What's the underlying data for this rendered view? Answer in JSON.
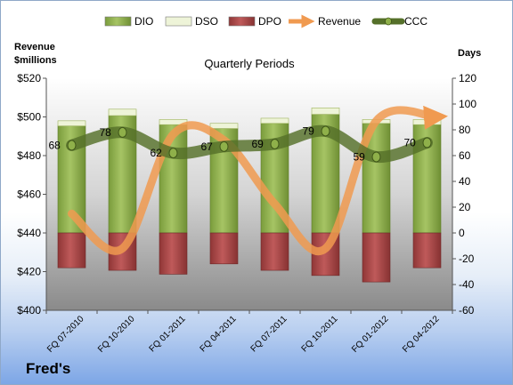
{
  "company": "Fred's",
  "chart_data": {
    "type": "bar",
    "title": "Quarterly Periods",
    "left_axis": {
      "label_lines": [
        "Revenue",
        "$millions"
      ],
      "min": 400,
      "max": 520,
      "step": 20,
      "tick_prefix": "$"
    },
    "right_axis": {
      "label": "Days",
      "min": -60,
      "max": 120,
      "step": 20
    },
    "categories": [
      "FQ 07-2010",
      "FQ 10-2010",
      "FQ 01-2011",
      "FQ 04-2011",
      "FQ 07-2011",
      "FQ 10-2011",
      "FQ 01-2012",
      "FQ 04-2012"
    ],
    "series": [
      {
        "name": "DIO",
        "kind": "bar",
        "axis": "right",
        "color": "#8cb04a",
        "values": [
          83,
          91,
          84,
          81,
          85,
          92,
          85,
          84
        ]
      },
      {
        "name": "DSO",
        "kind": "bar_stacked",
        "axis": "right",
        "color": "#eef4d8",
        "values": [
          4,
          5,
          4,
          4,
          4,
          5,
          3,
          4
        ]
      },
      {
        "name": "DPO",
        "kind": "bar_negative",
        "axis": "right",
        "color": "#a84545",
        "values": [
          -27,
          -29,
          -32,
          -24,
          -29,
          -33,
          -38,
          -27
        ]
      },
      {
        "name": "Revenue",
        "kind": "line",
        "axis": "left",
        "color": "#f09a50",
        "values": [
          450,
          432,
          491,
          488,
          455,
          432,
          498,
          500
        ]
      },
      {
        "name": "CCC",
        "kind": "line",
        "axis": "right",
        "color": "#5f7a30",
        "values": [
          68,
          78,
          62,
          67,
          69,
          79,
          59,
          70
        ],
        "labels": [
          "68",
          "78",
          "62",
          "67",
          "69",
          "79",
          "59",
          "70"
        ]
      }
    ],
    "legend": [
      "DIO",
      "DSO",
      "DPO",
      "Revenue",
      "CCC"
    ],
    "legend_position": "top",
    "grid": false
  }
}
